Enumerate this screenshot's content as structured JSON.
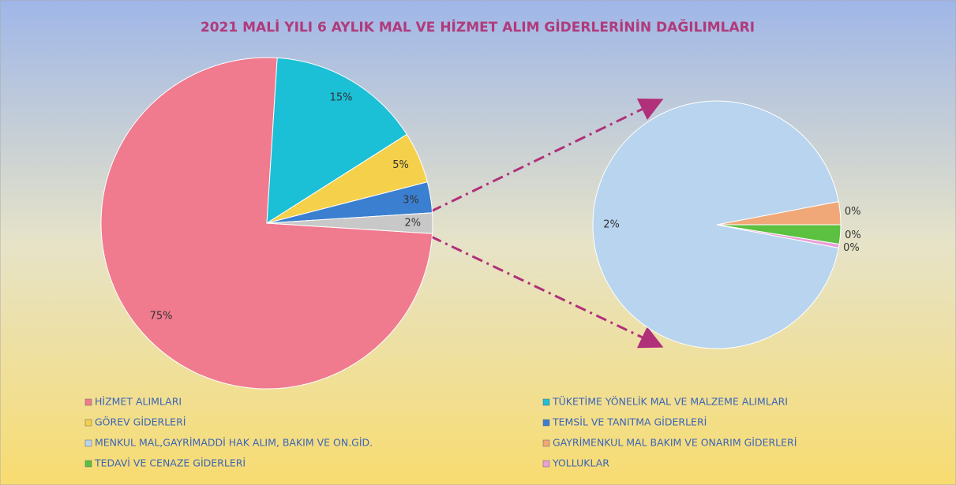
{
  "chart_data": {
    "type": "pie-of-pie",
    "title": "2021  MALİ YILI 6 AYLIK MAL VE HİZMET ALIM GİDERLERİNİN DAĞILIMLARI",
    "main": {
      "categories": [
        "HİZMET ALIMLARI",
        "TÜKETİME YÖNELİK MAL VE MALZEME ALIMLARI",
        "GÖREV GİDERLERİ",
        "TEMSİL VE TANITMA GİDERLERİ",
        null
      ],
      "values": [
        75,
        15,
        5,
        3,
        2
      ],
      "value_labels": [
        "75%",
        "15%",
        "5%",
        "3%",
        "2%"
      ],
      "colors": [
        "#f07a8e",
        "#1bbfd6",
        "#f5d04a",
        "#3b7fd0",
        "#c8c8c8"
      ]
    },
    "secondary": {
      "categories": [
        "MENKUL MAL,GAYRİMADDİ HAK ALIM, BAKIM VE ON.GİD.",
        "GAYRİMENKUL MAL BAKIM VE ONARIM GİDERLERİ",
        "TEDAVİ VE CENAZE GİDERLERİ",
        "YOLLUKLAR"
      ],
      "values": [
        1.88,
        0.06,
        0.05,
        0.01
      ],
      "value_labels": [
        "2%",
        "0%",
        "0%",
        "0%"
      ],
      "colors": [
        "#b8d4ee",
        "#f0a878",
        "#5cc040",
        "#e8a0d8"
      ]
    }
  }
}
